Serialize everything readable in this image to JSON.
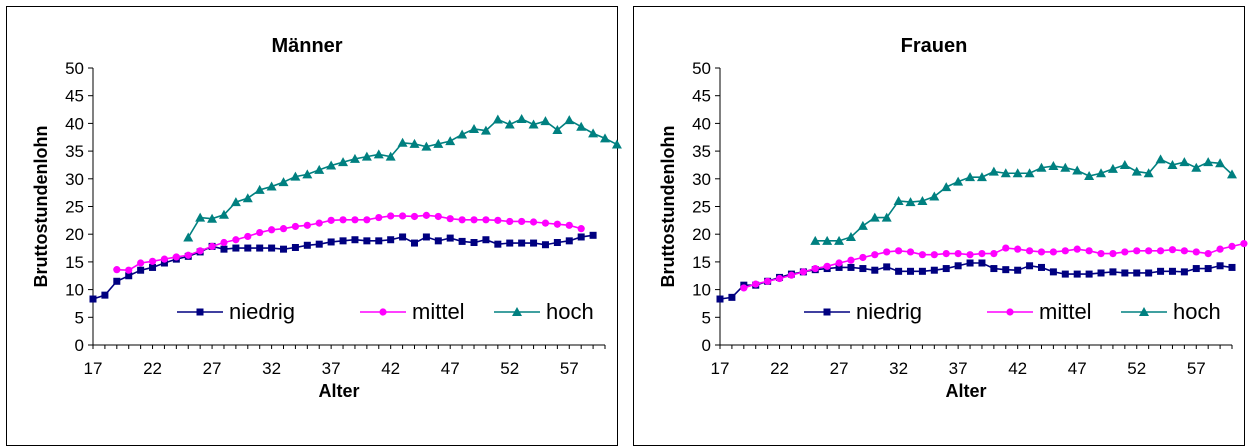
{
  "chart_data": [
    {
      "type": "line",
      "title": "Männer",
      "xlabel": "Alter",
      "ylabel": "Bruttostundenlohn",
      "ylim": [
        0,
        50
      ],
      "xlim": [
        17,
        60
      ],
      "yticks": [
        0,
        5,
        10,
        15,
        20,
        25,
        30,
        35,
        40,
        45,
        50
      ],
      "xticks": [
        17,
        22,
        27,
        32,
        37,
        42,
        47,
        52,
        57
      ],
      "grid": false,
      "legend": "bottom",
      "series": [
        {
          "name": "niedrig",
          "color": "#000080",
          "marker": "square",
          "start": 17,
          "values": [
            8.3,
            9.0,
            11.5,
            12.5,
            13.5,
            14.0,
            14.8,
            15.5,
            16.0,
            16.8,
            17.8,
            17.3,
            17.5,
            17.5,
            17.5,
            17.5,
            17.3,
            17.6,
            18.0,
            18.2,
            18.6,
            18.8,
            19.0,
            18.8,
            18.8,
            19.0,
            19.5,
            18.4,
            19.5,
            18.8,
            19.3,
            18.7,
            18.5,
            19.0,
            18.2,
            18.4,
            18.4,
            18.4,
            18.1,
            18.5,
            18.8,
            19.5,
            19.8
          ]
        },
        {
          "name": "mittel",
          "color": "#ff00ff",
          "marker": "circle",
          "start": 19,
          "values": [
            13.6,
            13.5,
            14.8,
            15.1,
            15.5,
            15.9,
            16.2,
            17.0,
            17.8,
            18.5,
            19.0,
            19.6,
            20.3,
            20.8,
            21.0,
            21.4,
            21.6,
            22.0,
            22.5,
            22.6,
            22.6,
            22.6,
            23.0,
            23.3,
            23.3,
            23.2,
            23.4,
            23.2,
            22.8,
            22.6,
            22.6,
            22.6,
            22.5,
            22.3,
            22.3,
            22.2,
            22.0,
            21.8,
            21.6,
            21.0
          ]
        },
        {
          "name": "hoch",
          "color": "#008080",
          "marker": "triangle",
          "start": 25,
          "values": [
            19.4,
            23.0,
            22.8,
            23.5,
            25.8,
            26.5,
            28.0,
            28.6,
            29.4,
            30.4,
            30.8,
            31.6,
            32.4,
            33.0,
            33.6,
            34.0,
            34.4,
            34.0,
            36.5,
            36.3,
            35.8,
            36.3,
            36.8,
            38.0,
            39.0,
            38.7,
            40.7,
            39.8,
            40.8,
            39.8,
            40.4,
            38.8,
            40.6,
            39.4,
            38.2,
            37.3,
            36.2
          ]
        }
      ]
    },
    {
      "type": "line",
      "title": "Frauen",
      "xlabel": "Alter",
      "ylabel": "Bruttostundenlohn",
      "ylim": [
        0,
        50
      ],
      "xlim": [
        17,
        60
      ],
      "yticks": [
        0,
        5,
        10,
        15,
        20,
        25,
        30,
        35,
        40,
        45,
        50
      ],
      "xticks": [
        17,
        22,
        27,
        32,
        37,
        42,
        47,
        52,
        57
      ],
      "grid": false,
      "legend": "bottom",
      "series": [
        {
          "name": "niedrig",
          "color": "#000080",
          "marker": "square",
          "start": 17,
          "values": [
            8.3,
            8.6,
            10.8,
            10.8,
            11.5,
            12.2,
            12.8,
            13.2,
            13.6,
            13.8,
            14.0,
            14.0,
            13.8,
            13.5,
            14.1,
            13.3,
            13.3,
            13.3,
            13.5,
            13.8,
            14.3,
            14.8,
            14.8,
            13.8,
            13.6,
            13.5,
            14.3,
            14.0,
            13.2,
            12.8,
            12.8,
            12.8,
            13.0,
            13.2,
            13.0,
            13.0,
            13.0,
            13.3,
            13.3,
            13.2,
            13.8,
            13.8,
            14.3,
            14.0
          ]
        },
        {
          "name": "mittel",
          "color": "#ff00ff",
          "marker": "circle",
          "start": 19,
          "values": [
            10.3,
            11.0,
            11.5,
            12.0,
            12.6,
            13.2,
            13.8,
            14.2,
            14.8,
            15.3,
            15.8,
            16.3,
            16.8,
            17.0,
            16.8,
            16.3,
            16.3,
            16.5,
            16.5,
            16.3,
            16.5,
            16.5,
            17.5,
            17.3,
            17.0,
            16.8,
            16.8,
            17.0,
            17.3,
            17.0,
            16.5,
            16.5,
            16.8,
            17.0,
            17.0,
            17.0,
            17.2,
            17.0,
            16.8,
            16.5,
            17.3,
            17.8,
            18.3
          ]
        },
        {
          "name": "hoch",
          "color": "#008080",
          "marker": "triangle",
          "start": 25,
          "values": [
            18.8,
            18.8,
            18.8,
            19.5,
            21.5,
            23.0,
            23.0,
            26.0,
            25.8,
            26.0,
            26.8,
            28.5,
            29.5,
            30.3,
            30.3,
            31.3,
            31.0,
            31.0,
            31.0,
            32.0,
            32.3,
            32.0,
            31.5,
            30.5,
            31.0,
            31.8,
            32.5,
            31.3,
            31.0,
            33.5,
            32.5,
            33.0,
            32.0,
            33.0,
            32.8,
            30.8
          ]
        }
      ]
    }
  ]
}
